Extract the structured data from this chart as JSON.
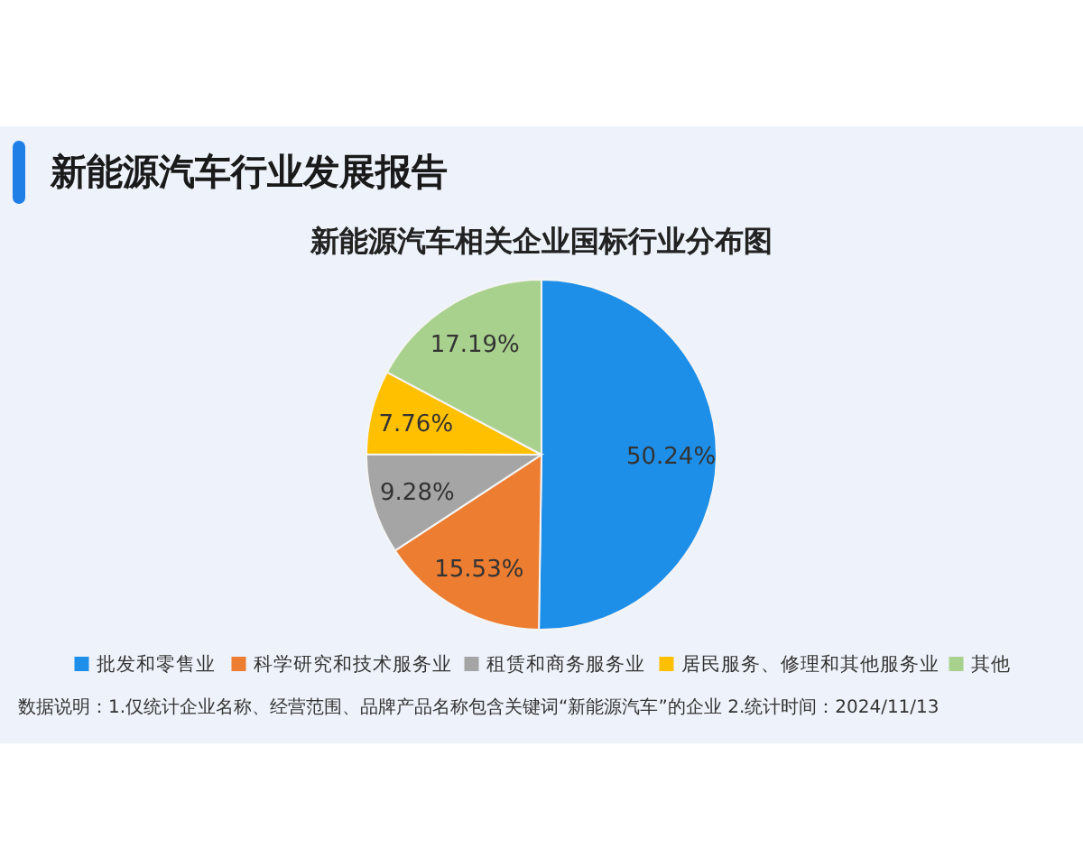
{
  "chart_data": {
    "type": "pie",
    "title": "新能源汽车行业发展报告",
    "subtitle": "新能源汽车相关企业国标行业分布图",
    "categories": [
      "批发和零售业",
      "科学研究和技术服务业",
      "租赁和商务服务业",
      "居民服务、修理和其他服务业",
      "其他"
    ],
    "values": [
      50.24,
      15.53,
      9.28,
      7.76,
      17.19
    ],
    "value_labels": [
      "50.24%",
      "15.53%",
      "9.28%",
      "7.76%",
      "17.19%"
    ],
    "colors": [
      "#1e8fe8",
      "#ed7d31",
      "#a5a5a5",
      "#ffc000",
      "#a9d18e"
    ],
    "legend": "bottom",
    "annotations": [
      "数据说明：1.仅统计企业名称、经营范围、品牌产品名称包含关键词“新能源汽车”的企业  2.统计时间：2024/11/13"
    ]
  }
}
